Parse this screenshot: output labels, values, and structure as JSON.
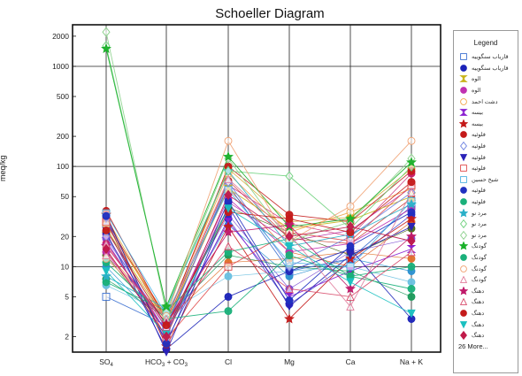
{
  "chart_data": {
    "type": "line",
    "title": "Schoeller Diagram",
    "xlabel": "",
    "ylabel": "meq/kg",
    "y_scale": "log",
    "ylim": [
      1.4,
      2600
    ],
    "y_ticks": [
      2,
      5,
      10,
      20,
      50,
      100,
      200,
      500,
      1000,
      2000
    ],
    "categories": [
      "SO4",
      "HCO3 + CO3",
      "Cl",
      "Mg",
      "Ca",
      "Na + K"
    ],
    "category_labels": [
      {
        "main": "SO",
        "sub": "4",
        "tail": ""
      },
      {
        "main": "HCO",
        "sub": "3",
        "tail": " + CO"
      },
      {
        "main": "Cl",
        "sub": "",
        "tail": ""
      },
      {
        "main": "Mg",
        "sub": "",
        "tail": ""
      },
      {
        "main": "Ca",
        "sub": "",
        "tail": ""
      },
      {
        "main": "Na + K",
        "sub": "",
        "tail": ""
      }
    ],
    "legend_title": "Legend",
    "legend_more": "26 More...",
    "grid": true,
    "series": [
      {
        "name": "قاریاب سنگوییه",
        "marker": "square-open",
        "color": "#3a6fd0",
        "values": [
          5,
          2.6,
          65,
          9,
          12,
          40
        ]
      },
      {
        "name": "قاریاب سنگوییه",
        "marker": "circle",
        "color": "#1a22b8",
        "values": [
          22,
          1.5,
          5,
          9,
          15,
          3
        ]
      },
      {
        "name": "الوه",
        "marker": "hourglass",
        "color": "#c8b31a",
        "values": [
          24,
          2.8,
          60,
          24,
          29,
          50
        ]
      },
      {
        "name": "الوه",
        "marker": "circle",
        "color": "#c030b0",
        "values": [
          14,
          2.3,
          48,
          14,
          17,
          38
        ]
      },
      {
        "name": "دشت احمد",
        "marker": "circle-open",
        "color": "#f0a64a",
        "values": [
          26,
          3.1,
          85,
          22,
          35,
          60
        ]
      },
      {
        "name": "بیسه",
        "marker": "hourglass",
        "color": "#8a1fd0",
        "values": [
          18,
          2.2,
          28,
          5,
          9,
          15
        ]
      },
      {
        "name": "بیسه",
        "marker": "star",
        "color": "#c41a1a",
        "values": [
          33,
          1.6,
          25,
          3,
          12,
          30
        ]
      },
      {
        "name": "فلوئیه",
        "marker": "circle",
        "color": "#c41a1a",
        "values": [
          36,
          2.9,
          100,
          33,
          28,
          90
        ]
      },
      {
        "name": "فلوئیه",
        "marker": "diamond-open",
        "color": "#6a7fe0",
        "values": [
          20,
          2.4,
          70,
          10,
          20,
          55
        ]
      },
      {
        "name": "فلوئیه",
        "marker": "triangle-down",
        "color": "#2a22b8",
        "values": [
          30,
          1.4,
          40,
          4,
          13,
          25
        ]
      },
      {
        "name": "فلوئیه",
        "marker": "square-open",
        "color": "#e04a4a",
        "values": [
          28,
          1.9,
          10,
          22,
          18,
          65
        ]
      },
      {
        "name": "شیخ حسین",
        "marker": "square-open",
        "color": "#4ab0e0",
        "values": [
          34,
          3.3,
          58,
          11,
          10,
          45
        ]
      },
      {
        "name": "فلوئیه",
        "marker": "circle",
        "color": "#2030c0",
        "values": [
          32,
          1.7,
          45,
          4.6,
          16,
          35
        ]
      },
      {
        "name": "فلوئیه",
        "marker": "circle",
        "color": "#1ab07a",
        "values": [
          7,
          3.6,
          14,
          19,
          8,
          6
        ]
      },
      {
        "name": "مرد نو",
        "marker": "star",
        "color": "#2ab0c8",
        "values": [
          8,
          3.8,
          90,
          16,
          21,
          42
        ]
      },
      {
        "name": "مرد نو",
        "marker": "diamond-open",
        "color": "#6ad07a",
        "values": [
          1600,
          4,
          90,
          80,
          24,
          100
        ]
      },
      {
        "name": "مرد نو",
        "marker": "diamond-open",
        "color": "#8ad08a",
        "values": [
          2200,
          3.5,
          120,
          18,
          28,
          120
        ]
      },
      {
        "name": "گودنگ",
        "marker": "star",
        "color": "#1ab02a",
        "values": [
          1500,
          4,
          125,
          25,
          30,
          110
        ]
      },
      {
        "name": "گودنگ",
        "marker": "circle",
        "color": "#1ab07a",
        "values": [
          11,
          3,
          3.6,
          13,
          8,
          10
        ]
      },
      {
        "name": "گودنگ",
        "marker": "circle-open",
        "color": "#f0a070",
        "values": [
          12,
          3.2,
          180,
          18,
          40,
          180
        ]
      },
      {
        "name": "گودنگ",
        "marker": "triangle-open",
        "color": "#e07a9a",
        "values": [
          13,
          3,
          75,
          21,
          4,
          55
        ]
      },
      {
        "name": "دهنگ",
        "marker": "star",
        "color": "#c01a6a",
        "values": [
          16,
          2.7,
          22,
          26,
          6,
          20
        ]
      },
      {
        "name": "دهنگ",
        "marker": "triangle-open",
        "color": "#d84a6a",
        "values": [
          17,
          2.5,
          16,
          6,
          5,
          14
        ]
      },
      {
        "name": "دهنگ",
        "marker": "circle",
        "color": "#c41a1a",
        "values": [
          23,
          2.6,
          35,
          30,
          22,
          70
        ]
      },
      {
        "name": "دهنگ",
        "marker": "triangle-down",
        "color": "#1ac0c0",
        "values": [
          9,
          2.1,
          38,
          16,
          7,
          3.4
        ]
      },
      {
        "name": "دهنگ",
        "marker": "diamond",
        "color": "#c01a4a",
        "values": [
          15,
          2,
          52,
          20,
          25,
          18
        ]
      }
    ],
    "background_series": [
      {
        "color": "#e05a1a",
        "values": [
          27,
          3.2,
          60,
          14,
          10,
          28
        ]
      },
      {
        "color": "#7a4ad0",
        "values": [
          19,
          2.6,
          33,
          6,
          14,
          19
        ]
      },
      {
        "color": "#2a90d0",
        "values": [
          10,
          2.4,
          26,
          8,
          12,
          9
        ]
      },
      {
        "color": "#d0a01a",
        "values": [
          31,
          2.9,
          95,
          28,
          31,
          95
        ]
      },
      {
        "color": "#1a9a5a",
        "values": [
          7.5,
          3.1,
          13,
          10,
          9,
          5
        ]
      },
      {
        "color": "#b01a9a",
        "values": [
          21,
          2.2,
          44,
          18,
          23,
          62
        ]
      },
      {
        "color": "#c0261a",
        "values": [
          29,
          2.8,
          72,
          19,
          17,
          48
        ]
      },
      {
        "color": "#2a2ac8",
        "values": [
          25,
          1.8,
          30,
          4.2,
          11,
          33
        ]
      },
      {
        "color": "#e0702a",
        "values": [
          14,
          2.9,
          11,
          12,
          14,
          12
        ]
      },
      {
        "color": "#6ac0e0",
        "values": [
          6.5,
          3.4,
          8,
          9,
          10,
          7
        ]
      },
      {
        "color": "#c81a6a",
        "values": [
          17,
          2.5,
          65,
          27,
          20,
          85
        ]
      },
      {
        "color": "#4a6a1a",
        "values": [
          13,
          2.3,
          39,
          22,
          13,
          24
        ]
      }
    ]
  }
}
